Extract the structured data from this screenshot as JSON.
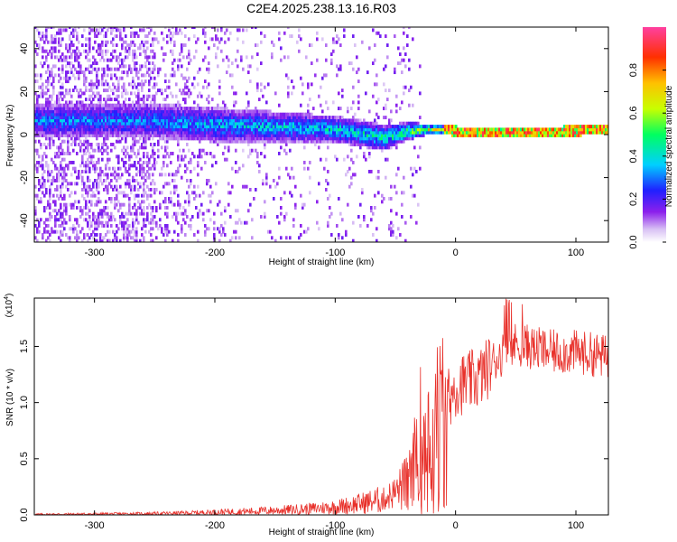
{
  "figure_title": "C2E4.2025.238.13.16.R03",
  "chart_data": [
    {
      "type": "heatmap",
      "name": "spectrogram",
      "xlabel": "Height of straight line (km)",
      "ylabel": "Frequency (Hz)",
      "xlim": [
        -350,
        127
      ],
      "ylim": [
        -50,
        50
      ],
      "x_ticks": [
        -300,
        -200,
        -100,
        0,
        100
      ],
      "y_ticks": [
        -40,
        -20,
        0,
        20,
        40
      ],
      "colorbar": {
        "label": "Normalized spectral amplitude",
        "range": [
          0,
          1
        ],
        "ticks": [
          "0.0",
          "0.2",
          "0.4",
          "0.6",
          "0.8"
        ],
        "tick_values": [
          0.0,
          0.2,
          0.4,
          0.6,
          0.8
        ],
        "colors": [
          "#ffffff",
          "#c8a8f0",
          "#7a00e6",
          "#1a1aff",
          "#00d0ff",
          "#00ff60",
          "#d0ff00",
          "#ffc000",
          "#ff3000",
          "#ff40a0"
        ]
      },
      "ridge": {
        "x": [
          -260,
          -200,
          -150,
          -100,
          -60,
          -40,
          -20,
          0,
          50,
          127
        ],
        "center_freq_hz": [
          6,
          4,
          3,
          2,
          -2,
          1,
          2,
          1,
          0.5,
          1.5
        ],
        "half_width_hz": [
          8,
          8,
          7,
          6,
          6,
          4,
          2,
          1.5,
          1.5,
          1.5
        ],
        "peak_amplitude": [
          0.35,
          0.4,
          0.42,
          0.45,
          0.5,
          0.6,
          0.75,
          0.85,
          0.9,
          0.85
        ]
      }
    },
    {
      "type": "line",
      "name": "snr",
      "xlabel": "Height of straight line (km)",
      "ylabel": "SNR (10 * v/v)",
      "y_scale_label": "(x10",
      "y_scale_exp": "4",
      "xlim": [
        -350,
        127
      ],
      "ylim": [
        0,
        1.93
      ],
      "x_ticks": [
        -300,
        -200,
        -100,
        0,
        100
      ],
      "y_ticks": [
        "0.0",
        "0.5",
        "1.0",
        "1.5"
      ],
      "y_tick_values": [
        0.0,
        0.5,
        1.0,
        1.5
      ],
      "color": "#e8302a",
      "series": [
        {
          "name": "SNR",
          "x": [
            -350,
            -300,
            -250,
            -220,
            -200,
            -180,
            -150,
            -120,
            -100,
            -80,
            -60,
            -50,
            -40,
            -35,
            -30,
            -25,
            -20,
            -15,
            -10,
            -5,
            0,
            10,
            20,
            30,
            40,
            50,
            60,
            70,
            80,
            100,
            120,
            127
          ],
          "values": [
            0.005,
            0.008,
            0.012,
            0.018,
            0.025,
            0.03,
            0.04,
            0.055,
            0.07,
            0.1,
            0.14,
            0.2,
            0.32,
            0.45,
            0.75,
            0.85,
            0.8,
            0.9,
            0.95,
            1.05,
            1.15,
            1.18,
            1.22,
            1.35,
            1.45,
            1.52,
            1.5,
            1.47,
            1.45,
            1.45,
            1.42,
            1.4
          ]
        }
      ]
    }
  ]
}
